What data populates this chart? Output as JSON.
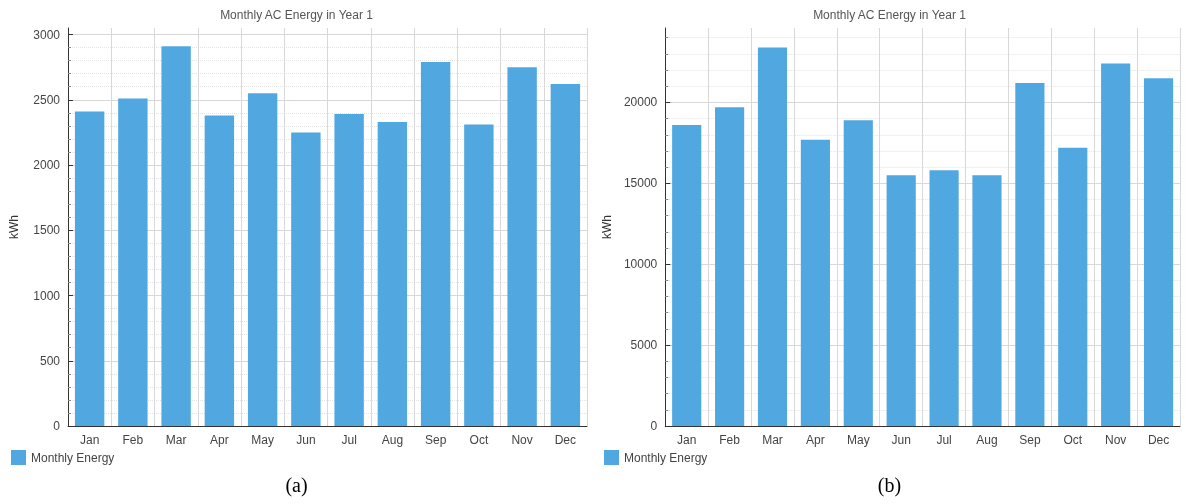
{
  "chart_data": [
    {
      "type": "bar",
      "title": "Monthly AC Energy in Year 1",
      "ylabel": "kWh",
      "categories": [
        "Jan",
        "Feb",
        "Mar",
        "Apr",
        "May",
        "Jun",
        "Jul",
        "Aug",
        "Sep",
        "Oct",
        "Nov",
        "Dec"
      ],
      "series": [
        {
          "name": "Monthly Energy",
          "color": "#51a8e0",
          "values": [
            2410,
            2510,
            2910,
            2380,
            2550,
            2250,
            2390,
            2330,
            2790,
            2310,
            2750,
            2620
          ]
        }
      ],
      "ylim": [
        0,
        3050
      ],
      "yticks": [
        0,
        500,
        1000,
        1500,
        2000,
        2500,
        3000
      ],
      "grid": true,
      "legend": "bottom left",
      "annotations": [
        "(a)"
      ]
    },
    {
      "type": "bar",
      "title": "Monthly AC Energy in Year 1",
      "ylabel": "kWh",
      "categories": [
        "Jan",
        "Feb",
        "Mar",
        "Apr",
        "May",
        "Jun",
        "Jul",
        "Aug",
        "Sep",
        "Oct",
        "Nov",
        "Dec"
      ],
      "series": [
        {
          "name": "Monthly Energy",
          "color": "#51a8e0",
          "values": [
            18600,
            19700,
            23400,
            17700,
            18900,
            15500,
            15800,
            15500,
            21200,
            17200,
            22400,
            21500
          ]
        }
      ],
      "ylim": [
        0,
        24600
      ],
      "yticks": [
        0,
        5000,
        10000,
        15000,
        20000
      ],
      "grid": true,
      "legend": "bottom left",
      "annotations": [
        "(b)"
      ]
    }
  ]
}
